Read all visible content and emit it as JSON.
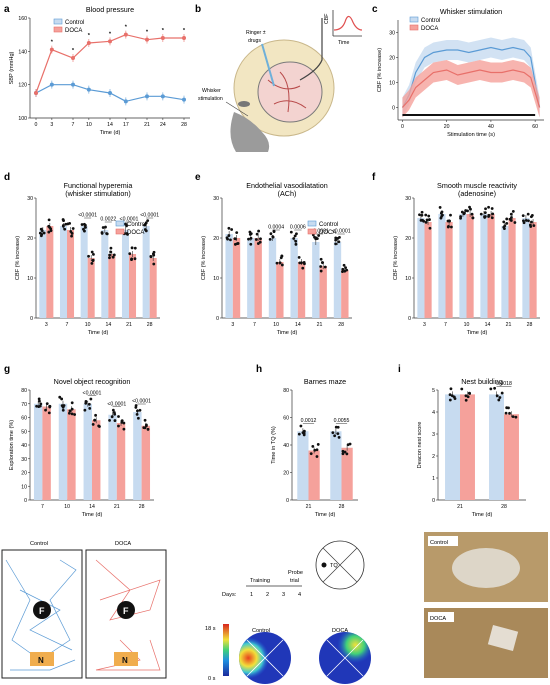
{
  "colors": {
    "control": "#5b9bd5",
    "doca": "#e8706a",
    "control_fill": "#c7dbf0",
    "doca_fill": "#f5a19b",
    "axis": "#333333"
  },
  "panel_labels": {
    "a": "a",
    "b": "b",
    "c": "c",
    "d": "d",
    "e": "e",
    "f": "f",
    "g": "g",
    "h": "h",
    "i": "i"
  },
  "legend": {
    "control": "Control",
    "doca": "DOCA"
  },
  "panel_b": {
    "ringer": "Ringer ±",
    "drugs": "drugs",
    "whisker": "Whisker",
    "stimulation": "stimulation",
    "cbf": "CBF",
    "time": "Time"
  },
  "bottom": {
    "control_label": "Control",
    "doca_label": "DOCA",
    "F": "F",
    "N": "N",
    "training": "Training",
    "probe": "Probe",
    "trial": "trial",
    "days": "Days:",
    "d1": "1",
    "d2": "2",
    "d3": "3",
    "d4": "4",
    "tq": "TQ",
    "heat_max": "18 s",
    "heat_min": "0 s",
    "nest_control": "Control",
    "nest_doca": "DOCA"
  },
  "chart_data": [
    {
      "id": "a",
      "type": "line",
      "title": "Blood pressure",
      "xlabel": "Time (d)",
      "ylabel": "SBP (mmHg)",
      "x": [
        0,
        3,
        7,
        10,
        14,
        17,
        21,
        24,
        28
      ],
      "ylim": [
        100,
        160
      ],
      "yticks": [
        100,
        120,
        140,
        160
      ],
      "series": [
        {
          "name": "Control",
          "values": [
            115,
            120,
            120,
            117,
            115,
            110,
            113,
            113,
            111
          ]
        },
        {
          "name": "DOCA",
          "values": [
            115,
            141,
            136,
            145,
            146,
            150,
            147,
            148,
            148
          ]
        }
      ],
      "annotations": [
        "*",
        "*",
        "*",
        "*",
        "*",
        "*",
        "*",
        "*"
      ]
    },
    {
      "id": "c",
      "type": "area",
      "title": "Whisker stimulation",
      "xlabel": "Stimulation time (s)",
      "ylabel": "CBF (% increase)",
      "xticks": [
        0,
        20,
        40,
        60
      ],
      "ylim": [
        -5,
        35
      ],
      "yticks": [
        0,
        10,
        20,
        30
      ],
      "series": [
        {
          "name": "Control",
          "x": [
            0,
            3,
            6,
            10,
            14,
            20,
            25,
            30,
            35,
            40,
            45,
            50,
            55,
            58,
            60,
            62
          ],
          "values": [
            0,
            5,
            14,
            20,
            22,
            23,
            23,
            22,
            23,
            24,
            23,
            24,
            23,
            20,
            10,
            0
          ]
        },
        {
          "name": "DOCA",
          "x": [
            0,
            3,
            6,
            10,
            14,
            20,
            25,
            30,
            35,
            40,
            45,
            50,
            55,
            58,
            60,
            62
          ],
          "values": [
            0,
            3,
            8,
            11,
            14,
            15,
            13,
            14,
            15,
            14,
            14,
            15,
            14,
            12,
            6,
            0
          ]
        }
      ]
    },
    {
      "id": "d",
      "type": "bar",
      "title": "Functional hyperemia",
      "subtitle": "(whisker stimulation)",
      "xlabel": "Time (d)",
      "ylabel": "CBF (% increase)",
      "categories": [
        "3",
        "7",
        "10",
        "14",
        "21",
        "28"
      ],
      "ylim": [
        0,
        30
      ],
      "yticks": [
        0,
        10,
        20,
        30
      ],
      "series": [
        {
          "name": "Control",
          "values": [
            22,
            23,
            23,
            22,
            22,
            23
          ]
        },
        {
          "name": "DOCA",
          "values": [
            23,
            22,
            15,
            16,
            16,
            15
          ]
        }
      ],
      "pvalues": [
        "",
        "",
        "<0.0001",
        "0.0022",
        "<0.0001",
        "<0.0001"
      ]
    },
    {
      "id": "e",
      "type": "bar",
      "title": "Endothelial vasodilatation",
      "subtitle": "(ACh)",
      "xlabel": "Time (d)",
      "ylabel": "CBF (% increase)",
      "categories": [
        "3",
        "7",
        "10",
        "14",
        "21",
        "28"
      ],
      "ylim": [
        0,
        30
      ],
      "yticks": [
        0,
        10,
        20,
        30
      ],
      "series": [
        {
          "name": "Control",
          "values": [
            21,
            20,
            20,
            20,
            19,
            19
          ]
        },
        {
          "name": "DOCA",
          "values": [
            20,
            20,
            14,
            14,
            13,
            12
          ]
        }
      ],
      "pvalues": [
        "",
        "",
        "0.0004",
        "0.0006",
        "<0.0001",
        "<0.0001"
      ]
    },
    {
      "id": "f",
      "type": "bar",
      "title": "Smooth muscle reactivity",
      "subtitle": "(adenosine)",
      "xlabel": "Time (d)",
      "ylabel": "CBF (% increase)",
      "categories": [
        "3",
        "7",
        "10",
        "14",
        "21",
        "28"
      ],
      "ylim": [
        0,
        30
      ],
      "yticks": [
        0,
        10,
        20,
        30
      ],
      "series": [
        {
          "name": "Control",
          "values": [
            25,
            26,
            26,
            26,
            23,
            25
          ]
        },
        {
          "name": "DOCA",
          "values": [
            24,
            24,
            26,
            26,
            25,
            24
          ]
        }
      ],
      "pvalues": [
        "",
        "",
        "",
        "",
        "",
        ""
      ]
    },
    {
      "id": "g",
      "type": "bar",
      "title": "Novel object recognition",
      "xlabel": "Time (d)",
      "ylabel": "Exploration time (%)",
      "categories": [
        "7",
        "10",
        "14",
        "21",
        "28"
      ],
      "ylim": [
        0,
        80
      ],
      "yticks": [
        0,
        10,
        20,
        30,
        40,
        50,
        60,
        70,
        80
      ],
      "series": [
        {
          "name": "Control",
          "values": [
            70,
            70,
            70,
            62,
            64
          ]
        },
        {
          "name": "DOCA",
          "values": [
            68,
            66,
            58,
            56,
            54
          ]
        }
      ],
      "pvalues": [
        "",
        "",
        "<0.0001",
        "<0.0001",
        "<0.0001"
      ]
    },
    {
      "id": "h",
      "type": "bar",
      "title": "Barnes  maze",
      "xlabel": "Time (d)",
      "ylabel": "Time in TQ (%)",
      "categories": [
        "21",
        "28"
      ],
      "ylim": [
        0,
        80
      ],
      "yticks": [
        0,
        20,
        40,
        60,
        80
      ],
      "series": [
        {
          "name": "Control",
          "values": [
            50,
            50
          ]
        },
        {
          "name": "DOCA",
          "values": [
            36,
            38
          ]
        }
      ],
      "pvalues": [
        "0.0012",
        "0.0055"
      ]
    },
    {
      "id": "i",
      "type": "bar",
      "title": "Nest building",
      "xlabel": "Time (d)",
      "ylabel": "Deacon nest score",
      "categories": [
        "21",
        "28"
      ],
      "ylim": [
        0,
        5
      ],
      "yticks": [
        0,
        1,
        2,
        3,
        4,
        5
      ],
      "series": [
        {
          "name": "Control",
          "values": [
            4.8,
            4.8
          ]
        },
        {
          "name": "DOCA",
          "values": [
            4.8,
            3.9
          ]
        }
      ],
      "pvalues": [
        "",
        "0.0018"
      ]
    }
  ]
}
